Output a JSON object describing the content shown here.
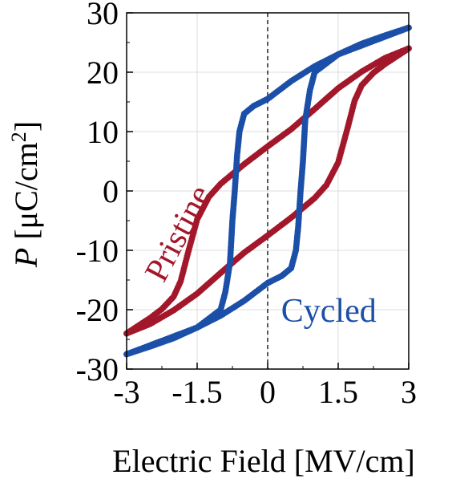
{
  "chart_data": {
    "type": "scatter",
    "title": "",
    "xlabel": "Electric Field [MV/cm]",
    "ylabel_symbol": "P",
    "ylabel_unit_base": " [μC/cm",
    "ylabel_unit_sup": "2",
    "ylabel_unit_close": "]",
    "xlim": [
      -3,
      3
    ],
    "ylim": [
      -30,
      30
    ],
    "xticks": [
      -3,
      -1.5,
      0,
      1.5,
      3
    ],
    "xtick_labels": [
      "-3",
      "-1.5",
      "0",
      "1.5",
      "3"
    ],
    "yticks": [
      -30,
      -20,
      -10,
      0,
      10,
      20,
      30
    ],
    "ytick_labels": [
      "-30",
      "-20",
      "-10",
      "0",
      "10",
      "20",
      "30"
    ],
    "grid": true,
    "zero_line": {
      "axis": "x",
      "value": 0,
      "style": "dashed"
    },
    "annotations": [
      {
        "text": "Pristine",
        "series": "Pristine",
        "x": -1.7,
        "y": -8,
        "rotation": -62
      },
      {
        "text": "Cycled",
        "series": "Cycled",
        "x": 1.3,
        "y": -22,
        "rotation": 0
      }
    ],
    "series": [
      {
        "name": "Pristine",
        "color": "#a3172b",
        "branches": [
          {
            "x": [
              -3,
              -2.5,
              -2,
              -1.5,
              -1,
              -0.5,
              0,
              0.5,
              1,
              1.25,
              1.5,
              1.7,
              1.85,
              2,
              2.25,
              2.5,
              2.75,
              3
            ],
            "y": [
              -24,
              -22.4,
              -20.1,
              -17.3,
              -13.8,
              -10.4,
              -7.5,
              -4.5,
              -1.2,
              1,
              4.8,
              10.6,
              15.2,
              17.8,
              19.9,
              21.4,
              22.7,
              24
            ]
          },
          {
            "x": [
              3,
              2.5,
              2,
              1.5,
              1,
              0.5,
              0,
              -0.5,
              -1,
              -1.25,
              -1.5,
              -1.7,
              -1.85,
              -2,
              -2.25,
              -2.5,
              -2.75,
              -3
            ],
            "y": [
              24,
              22.4,
              20.1,
              17.3,
              13.8,
              10.4,
              7.5,
              4.5,
              1.2,
              -1,
              -4.8,
              -10.6,
              -15.2,
              -17.8,
              -19.9,
              -21.4,
              -22.7,
              -24
            ]
          }
        ]
      },
      {
        "name": "Cycled",
        "color": "#1b4fa8",
        "branches": [
          {
            "x": [
              -3,
              -2.5,
              -2,
              -1.5,
              -1,
              -0.9,
              -0.8,
              -0.75,
              -0.7,
              -0.65,
              -0.6,
              -0.5,
              -0.3,
              0,
              0.5,
              1,
              1.5,
              2,
              2.5,
              3
            ],
            "y": [
              -27.5,
              -26,
              -24.5,
              -23,
              -20,
              -17,
              -12,
              -5,
              0,
              6,
              10,
              13,
              14.3,
              15.5,
              18.5,
              21,
              23,
              24.8,
              26.2,
              27.5
            ]
          },
          {
            "x": [
              3,
              2.5,
              2,
              1.5,
              1,
              0.9,
              0.8,
              0.75,
              0.7,
              0.65,
              0.6,
              0.5,
              0.3,
              0,
              -0.5,
              -1,
              -1.5,
              -2,
              -2.5,
              -3
            ],
            "y": [
              27.5,
              26,
              24.5,
              23,
              20,
              17,
              12,
              5,
              0,
              -6,
              -10,
              -13,
              -14.3,
              -15.5,
              -18.5,
              -21,
              -23,
              -24.8,
              -26.2,
              -27.5
            ]
          }
        ]
      }
    ]
  }
}
